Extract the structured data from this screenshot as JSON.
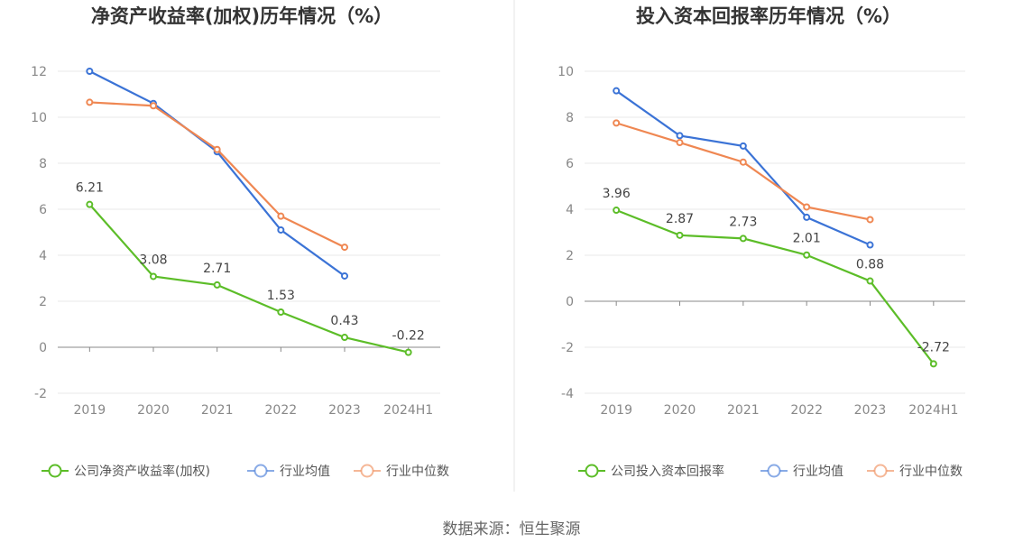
{
  "source_text": "数据来源：恒生聚源",
  "colors": {
    "company": "#5cbd28",
    "avg": "#3b73d6",
    "median": "#ef8752"
  },
  "chart_data": [
    {
      "type": "line",
      "title": "净资产收益率(加权)历年情况（%）",
      "categories": [
        "2019",
        "2020",
        "2021",
        "2022",
        "2023",
        "2024H1"
      ],
      "ylim": [
        -2,
        12
      ],
      "yticks": [
        -2,
        0,
        2,
        4,
        6,
        8,
        10,
        12
      ],
      "grid": true,
      "legend_position": "bottom",
      "series": [
        {
          "name": "公司净资产收益率(加权)",
          "key": "company",
          "values": [
            6.21,
            3.08,
            2.71,
            1.53,
            0.43,
            -0.22
          ],
          "labels": [
            "6.21",
            "3.08",
            "2.71",
            "1.53",
            "0.43",
            "-0.22"
          ]
        },
        {
          "name": "行业均值",
          "key": "avg",
          "values": [
            12.0,
            10.6,
            8.5,
            5.1,
            3.1,
            null
          ]
        },
        {
          "name": "行业中位数",
          "key": "median",
          "values": [
            10.65,
            10.5,
            8.6,
            5.7,
            4.35,
            null
          ]
        }
      ]
    },
    {
      "type": "line",
      "title": "投入资本回报率历年情况（%）",
      "categories": [
        "2019",
        "2020",
        "2021",
        "2022",
        "2023",
        "2024H1"
      ],
      "ylim": [
        -4,
        10
      ],
      "yticks": [
        -4,
        -2,
        0,
        2,
        4,
        6,
        8,
        10
      ],
      "grid": true,
      "legend_position": "bottom",
      "series": [
        {
          "name": "公司投入资本回报率",
          "key": "company",
          "values": [
            3.96,
            2.87,
            2.73,
            2.01,
            0.88,
            -2.72
          ],
          "labels": [
            "3.96",
            "2.87",
            "2.73",
            "2.01",
            "0.88",
            "-2.72"
          ]
        },
        {
          "name": "行业均值",
          "key": "avg",
          "values": [
            9.15,
            7.2,
            6.75,
            3.65,
            2.45,
            null
          ]
        },
        {
          "name": "行业中位数",
          "key": "median",
          "values": [
            7.75,
            6.9,
            6.05,
            4.1,
            3.55,
            null
          ]
        }
      ]
    }
  ]
}
